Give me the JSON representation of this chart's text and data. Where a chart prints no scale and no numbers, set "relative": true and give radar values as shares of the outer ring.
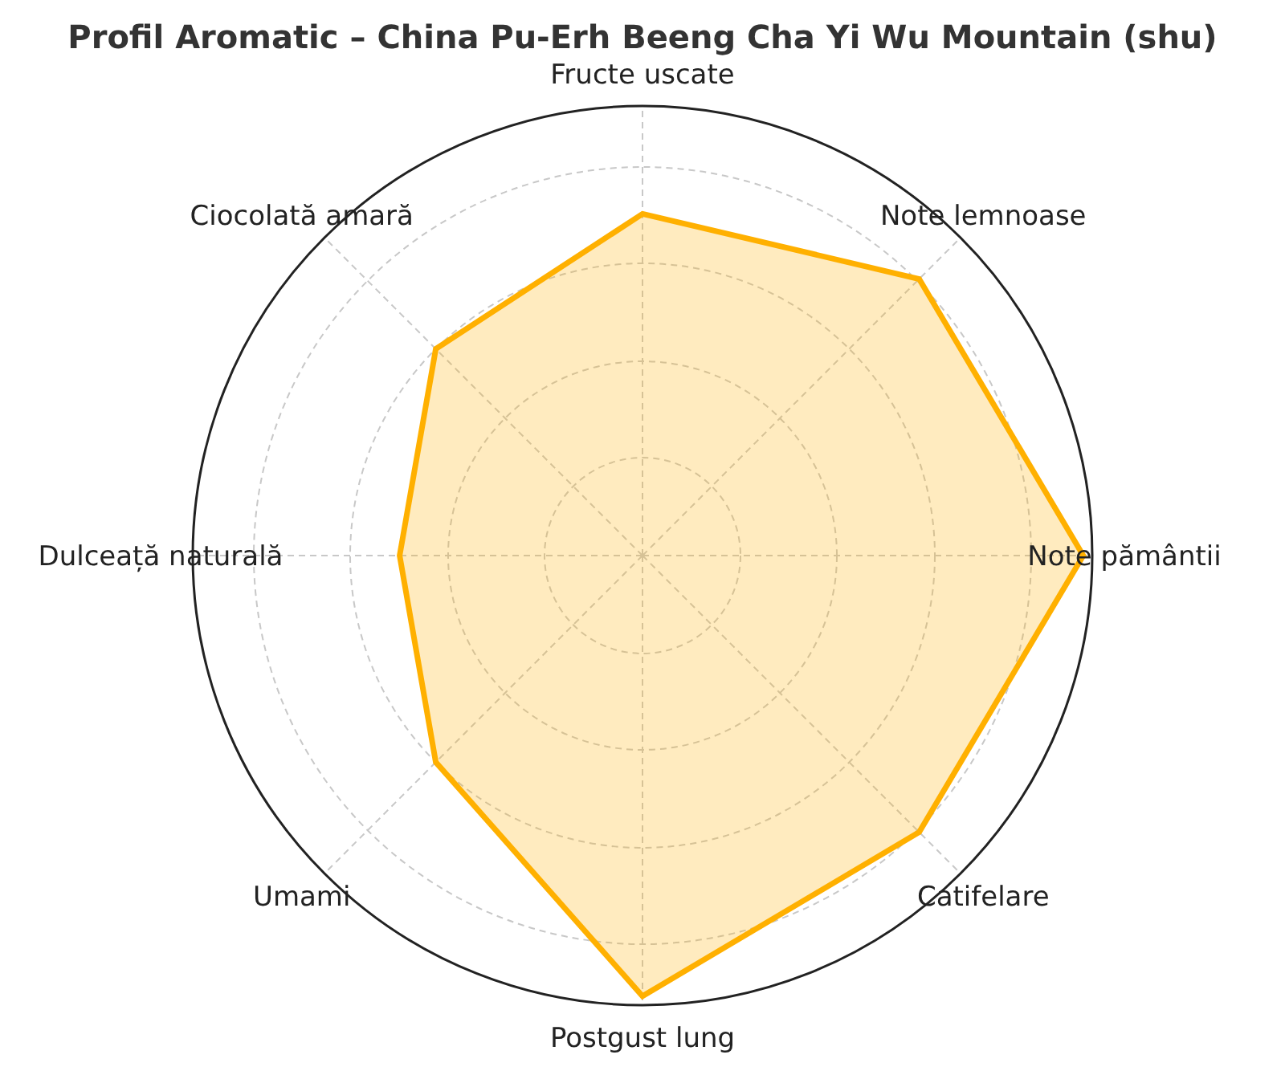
{
  "chart_data": {
    "type": "radar",
    "title": "Profil Aromatic – China Pu-Erh Beeng Cha Yi Wu Mountain (shu)",
    "categories": [
      "Fructe uscate",
      "Note lemnoase",
      "Note pământii",
      "Catifelare",
      "Postgust lung",
      "Umami",
      "Dulceață naturală",
      "Ciocolată amară"
    ],
    "series": [
      {
        "color": "#ffb000",
        "values": [
          0.76,
          0.87,
          0.98,
          0.87,
          0.98,
          0.65,
          0.54,
          0.65
        ]
      }
    ],
    "relative": true,
    "grid": true
  }
}
